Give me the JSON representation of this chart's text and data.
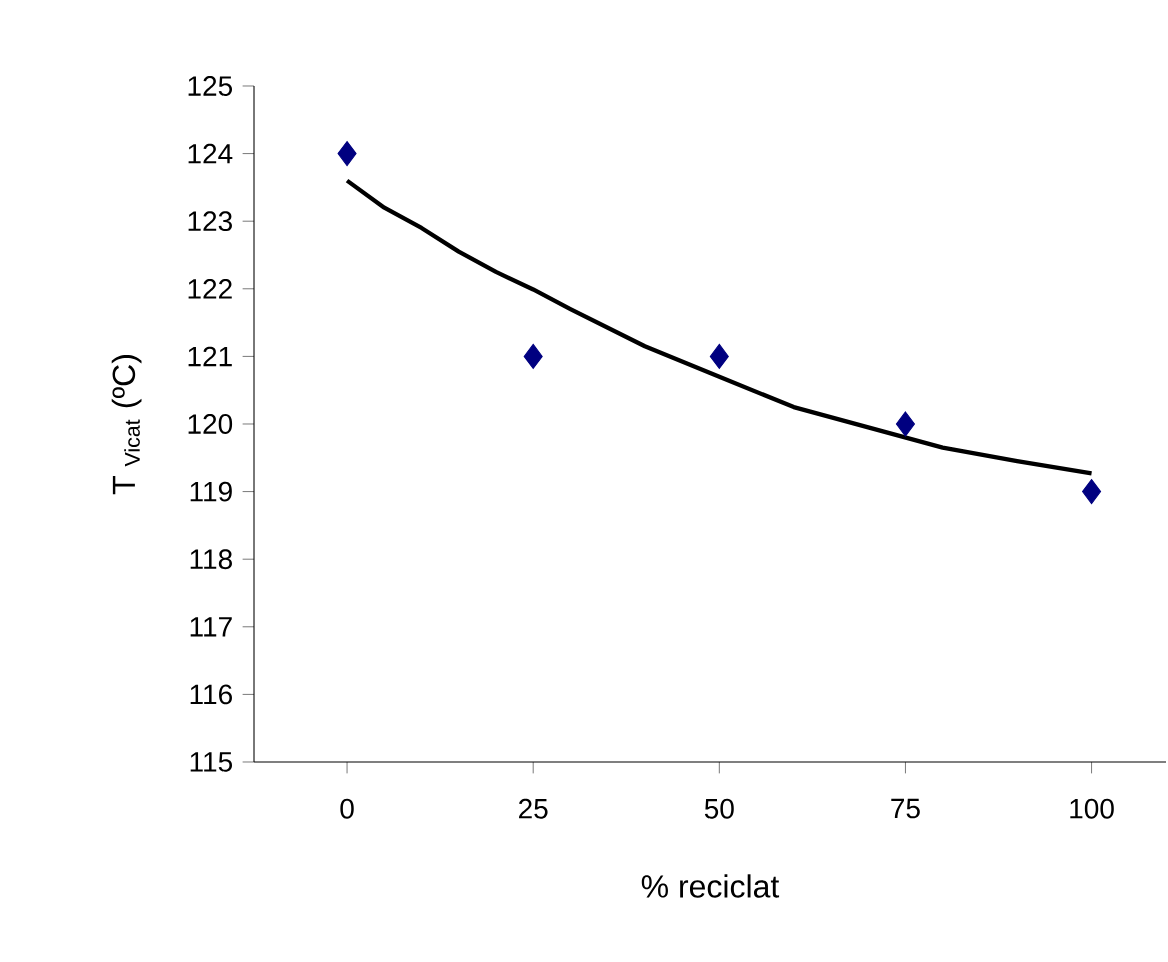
{
  "chart_data": {
    "type": "scatter",
    "xlabel": "% reciclat",
    "ylabel": "T $_{Vicat}$ (ºC)",
    "xlim": [
      -12.5,
      110
    ],
    "ylim": [
      115,
      125
    ],
    "xticks": [
      0,
      25,
      50,
      75,
      100
    ],
    "yticks": [
      115,
      116,
      117,
      118,
      119,
      120,
      121,
      122,
      123,
      124,
      125
    ],
    "series": [
      {
        "color": "#000080",
        "marker": "diamond",
        "x": [
          0,
          25,
          50,
          75,
          100
        ],
        "values": [
          124,
          121,
          121,
          120,
          119
        ]
      },
      {
        "type": "line",
        "color": "#000000",
        "marker": "none",
        "line_style": "solid",
        "x": [
          0,
          5,
          10,
          15,
          20,
          25,
          30,
          40,
          50,
          60,
          70,
          75,
          80,
          90,
          100
        ],
        "values": [
          123.6,
          123.2,
          122.9,
          122.55,
          122.25,
          121.99,
          121.7,
          121.15,
          120.7,
          120.25,
          119.95,
          119.8,
          119.65,
          119.45,
          119.27
        ]
      }
    ]
  }
}
